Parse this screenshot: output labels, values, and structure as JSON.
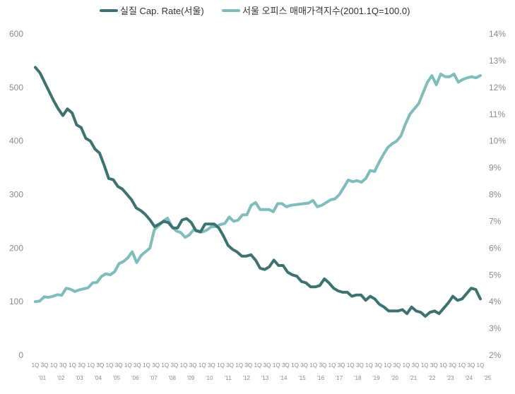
{
  "chart_data": {
    "type": "line",
    "title": "",
    "colors": {
      "cap_rate": "#3d7270",
      "price_index": "#7fbcbc",
      "tick_text": "#8a8a8a"
    },
    "legend": {
      "placement": "top-center"
    },
    "grid": false,
    "y_left": {
      "ylim": [
        0,
        600
      ],
      "ticks": [
        "0",
        "100",
        "200",
        "300",
        "400",
        "500",
        "600"
      ]
    },
    "y_right": {
      "ylim": [
        2,
        14
      ],
      "ticks": [
        "2%",
        "3%",
        "4%",
        "5%",
        "6%",
        "7%",
        "8%",
        "9%",
        "10%",
        "11%",
        "12%",
        "13%",
        "14%"
      ]
    },
    "x_tick_labels": [
      "1Q",
      "3Q",
      "1Q",
      "3Q",
      "1Q",
      "3Q",
      "1Q",
      "3Q",
      "1Q",
      "3Q",
      "1Q",
      "3Q",
      "1Q",
      "3Q",
      "1Q",
      "3Q",
      "1Q",
      "3Q",
      "1Q",
      "3Q",
      "1Q",
      "3Q",
      "1Q",
      "3Q",
      "1Q",
      "3Q",
      "1Q",
      "3Q",
      "1Q",
      "3Q",
      "1Q",
      "3Q",
      "1Q",
      "3Q",
      "1Q",
      "3Q",
      "1Q",
      "3Q",
      "1Q",
      "3Q",
      "1Q",
      "3Q",
      "1Q",
      "3Q",
      "1Q",
      "3Q",
      "1Q",
      "3Q",
      "1Q"
    ],
    "year_labels": [
      "'01",
      "'02",
      "'03",
      "'04",
      "'05",
      "'06",
      "'07",
      "'08",
      "'09",
      "'10",
      "'11",
      "'12",
      "'13",
      "'14",
      "'15",
      "'16",
      "'17",
      "'18",
      "'19",
      "'20",
      "'21",
      "'22",
      "'23",
      "'24",
      "'25"
    ],
    "series": [
      {
        "name": "실질 Cap. Rate(서울)",
        "axis": "right",
        "values": [
          12.75,
          12.55,
          12.2,
          11.85,
          11.5,
          11.2,
          10.95,
          11.2,
          11.05,
          10.6,
          10.5,
          10.1,
          10.0,
          9.7,
          9.55,
          9.1,
          8.6,
          8.55,
          8.3,
          8.2,
          8.0,
          7.8,
          7.5,
          7.4,
          7.25,
          7.05,
          6.8,
          6.9,
          7.0,
          6.95,
          6.75,
          6.75,
          7.05,
          7.1,
          6.95,
          6.65,
          6.6,
          6.9,
          6.9,
          6.9,
          6.75,
          6.45,
          6.1,
          5.95,
          5.85,
          5.7,
          5.7,
          5.75,
          5.55,
          5.25,
          5.2,
          5.3,
          5.55,
          5.35,
          5.35,
          5.1,
          5.0,
          4.95,
          4.75,
          4.7,
          4.55,
          4.55,
          4.6,
          4.85,
          4.7,
          4.5,
          4.4,
          4.35,
          4.35,
          4.2,
          4.25,
          4.25,
          4.05,
          4.2,
          4.1,
          3.9,
          3.8,
          3.65,
          3.65,
          3.65,
          3.7,
          3.55,
          3.8,
          3.65,
          3.6,
          3.45,
          3.6,
          3.65,
          3.55,
          3.75,
          3.95,
          4.2,
          4.05,
          4.1,
          4.3,
          4.5,
          4.45,
          4.1
        ]
      },
      {
        "name": "서울 오피스 매매가격지수(2001.1Q=100.0)",
        "axis": "left",
        "values": [
          100,
          101,
          109,
          108,
          110,
          113,
          112,
          125,
          123,
          119,
          122,
          124,
          126,
          135,
          136,
          147,
          152,
          150,
          156,
          171,
          175,
          182,
          193,
          173,
          186,
          193,
          200,
          234,
          242,
          250,
          256,
          240,
          232,
          229,
          220,
          225,
          235,
          232,
          230,
          234,
          240,
          240,
          244,
          246,
          258,
          250,
          252,
          262,
          262,
          280,
          285,
          272,
          272,
          272,
          268,
          283,
          283,
          277,
          280,
          281,
          282,
          283,
          284,
          289,
          277,
          280,
          285,
          290,
          292,
          300,
          313,
          327,
          324,
          326,
          323,
          330,
          345,
          343,
          360,
          375,
          388,
          395,
          400,
          410,
          432,
          450,
          460,
          470,
          490,
          510,
          522,
          505,
          525,
          520,
          520,
          525,
          510,
          515,
          518,
          520,
          518,
          522
        ]
      }
    ]
  }
}
